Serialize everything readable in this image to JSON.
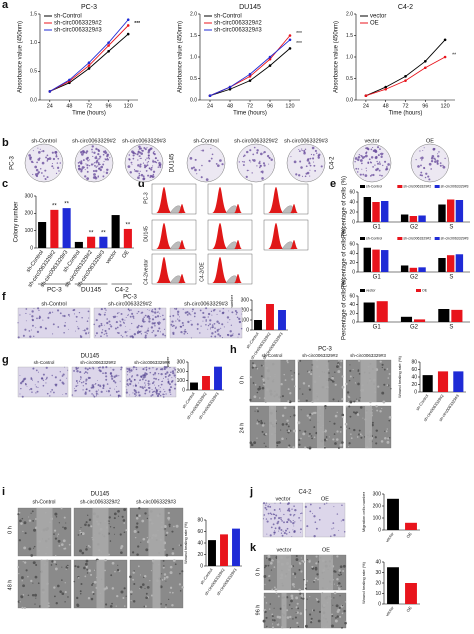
{
  "panels": [
    "a",
    "b",
    "c",
    "d",
    "e",
    "f",
    "g",
    "h",
    "i",
    "j",
    "k"
  ],
  "chart_data": [
    {
      "type": "line",
      "title": "PC-3",
      "x_label": "Time (hours)",
      "y_label": "Absorbance value (450nm)",
      "x": [
        24,
        48,
        72,
        96,
        120
      ],
      "xlim": [
        12,
        132
      ],
      "xticks": [
        24,
        48,
        72,
        96,
        120
      ],
      "ylim": [
        0,
        1.5
      ],
      "yticks": [
        {
          "value": 0,
          "label": "0.0"
        },
        {
          "value": 0.5,
          "label": "0.5"
        },
        {
          "value": 1,
          "label": "1.0"
        },
        {
          "value": 1.5,
          "label": "1.5"
        }
      ],
      "series": [
        {
          "name": "sh-Control",
          "color": "#000000",
          "values": [
            0.15,
            0.3,
            0.55,
            0.85,
            1.15
          ]
        },
        {
          "name": "sh-circ0063329#2",
          "color": "#e8141c",
          "values": [
            0.15,
            0.33,
            0.6,
            0.95,
            1.3
          ]
        },
        {
          "name": "sh-circ0063329#3",
          "color": "#1f2bd6",
          "values": [
            0.15,
            0.35,
            0.65,
            1.0,
            1.4
          ]
        }
      ],
      "annotations": [
        "***",
        "***"
      ]
    },
    {
      "type": "line",
      "title": "DU145",
      "x_label": "Time (hours)",
      "y_label": "Absorbance value (450nm)",
      "x": [
        24,
        48,
        72,
        96,
        120
      ],
      "xlim": [
        12,
        132
      ],
      "xticks": [
        24,
        48,
        72,
        96,
        120
      ],
      "ylim": [
        0,
        2
      ],
      "yticks": [
        {
          "value": 0,
          "label": "0.0"
        },
        {
          "value": 0.5,
          "label": "0.5"
        },
        {
          "value": 1,
          "label": "1.0"
        },
        {
          "value": 1.5,
          "label": "1.5"
        },
        {
          "value": 2,
          "label": "2.0"
        }
      ],
      "series": [
        {
          "name": "sh-Control",
          "color": "#000000",
          "values": [
            0.1,
            0.25,
            0.45,
            0.8,
            1.2
          ]
        },
        {
          "name": "sh-circ0063329#2",
          "color": "#e8141c",
          "values": [
            0.1,
            0.3,
            0.55,
            0.95,
            1.5
          ]
        },
        {
          "name": "sh-circ0063329#3",
          "color": "#1f2bd6",
          "values": [
            0.1,
            0.3,
            0.6,
            1.0,
            1.4
          ]
        }
      ],
      "annotations": [
        "***",
        "***"
      ]
    },
    {
      "type": "line",
      "title": "C4-2",
      "x_label": "Time (hours)",
      "y_label": "Absorbance value (450nm)",
      "x": [
        24,
        48,
        72,
        96,
        120
      ],
      "xlim": [
        12,
        132
      ],
      "xticks": [
        24,
        48,
        72,
        96,
        120
      ],
      "ylim": [
        0,
        2
      ],
      "yticks": [
        {
          "value": 0,
          "label": "0.0"
        },
        {
          "value": 0.5,
          "label": "0.5"
        },
        {
          "value": 1,
          "label": "1.0"
        },
        {
          "value": 1.5,
          "label": "1.5"
        },
        {
          "value": 2,
          "label": "2.0"
        }
      ],
      "series": [
        {
          "name": "vector",
          "color": "#000000",
          "values": [
            0.1,
            0.3,
            0.55,
            0.9,
            1.4
          ]
        },
        {
          "name": "OE",
          "color": "#e8141c",
          "values": [
            0.1,
            0.25,
            0.45,
            0.75,
            1.0
          ]
        }
      ],
      "annotations": [
        "**"
      ]
    },
    {
      "type": "bar",
      "y_label": "Colony number",
      "categories": [
        "sh-Control",
        "sh-circ0063329#2",
        "sh-circ0063329#3",
        "sh-Control",
        "sh-circ0063329#2",
        "sh-circ0063329#3",
        "vector",
        "OE"
      ],
      "values": [
        150,
        220,
        230,
        35,
        65,
        65,
        190,
        110
      ],
      "colors": [
        "#000000",
        "#e8141c",
        "#1f2bd6",
        "#000000",
        "#e8141c",
        "#1f2bd6",
        "#000000",
        "#e8141c"
      ],
      "ylim": [
        0,
        300
      ],
      "yticks": [
        0,
        100,
        200,
        300
      ],
      "significance": [
        null,
        "**",
        "**",
        null,
        "**",
        "**",
        null,
        "**"
      ],
      "group_labels": [
        "PC-3",
        "DU145",
        "C4-2"
      ]
    },
    {
      "type": "bar",
      "y_label": "Percentage of cells (%)",
      "categories": [
        "G1",
        "G2",
        "S"
      ],
      "ylim": [
        0,
        60
      ],
      "yticks": [
        0,
        20,
        40,
        60
      ],
      "series": [
        {
          "name": "sh-Control",
          "color": "#000000",
          "values": [
            50,
            15,
            35
          ]
        },
        {
          "name": "sh-circ0063329#2",
          "color": "#e8141c",
          "values": [
            40,
            12,
            45
          ]
        },
        {
          "name": "sh-circ0063329#3",
          "color": "#1f2bd6",
          "values": [
            42,
            13,
            44
          ]
        }
      ]
    },
    {
      "type": "bar",
      "y_label": "Percentage of cells (%)",
      "categories": [
        "G1",
        "G2",
        "S"
      ],
      "ylim": [
        0,
        60
      ],
      "yticks": [
        0,
        20,
        40,
        60
      ],
      "series": [
        {
          "name": "sh-Control",
          "color": "#000000",
          "values": [
            52,
            14,
            30
          ]
        },
        {
          "name": "sh-circ0063329#2",
          "color": "#e8141c",
          "values": [
            48,
            9,
            36
          ]
        },
        {
          "name": "sh-circ0063329#3",
          "color": "#1f2bd6",
          "values": [
            47,
            10,
            38
          ]
        }
      ]
    },
    {
      "type": "bar",
      "y_label": "Percentage of cells (%)",
      "categories": [
        "G1",
        "G2",
        "S"
      ],
      "ylim": [
        0,
        60
      ],
      "yticks": [
        0,
        20,
        40,
        60
      ],
      "series": [
        {
          "name": "vector",
          "color": "#000000",
          "values": [
            45,
            12,
            30
          ]
        },
        {
          "name": "OE",
          "color": "#e8141c",
          "values": [
            48,
            6,
            28
          ]
        }
      ]
    },
    {
      "type": "bar",
      "y_label": "Migration cells number",
      "categories": [
        "sh-Control",
        "sh-circ0063329#2",
        "sh-circ0063329#3"
      ],
      "values": [
        100,
        260,
        200
      ],
      "colors": [
        "#000000",
        "#e8141c",
        "#1f2bd6"
      ],
      "ylim": [
        0,
        300
      ],
      "yticks": [
        0,
        100,
        200,
        300
      ]
    },
    {
      "type": "bar",
      "y_label": "Invasion cells number",
      "categories": [
        "sh-Control",
        "sh-circ0063329#2",
        "sh-circ0063329#3"
      ],
      "values": [
        80,
        150,
        250
      ],
      "colors": [
        "#000000",
        "#e8141c",
        "#1f2bd6"
      ],
      "ylim": [
        0,
        300
      ],
      "yticks": [
        0,
        100,
        200,
        300
      ]
    },
    {
      "type": "bar",
      "y_label": "Wound healing rate (%)",
      "categories": [
        "sh-Control",
        "sh-circ0063329#2",
        "sh-circ0063329#3"
      ],
      "values": [
        45,
        55,
        55
      ],
      "colors": [
        "#000000",
        "#e8141c",
        "#1f2bd6"
      ],
      "ylim": [
        0,
        80
      ],
      "yticks": [
        0,
        20,
        40,
        60,
        80
      ]
    },
    {
      "type": "bar",
      "y_label": "Wound healing rate (%)",
      "categories": [
        "sh-Control",
        "sh-circ0063329#2",
        "sh-circ0063329#3"
      ],
      "values": [
        45,
        55,
        65
      ],
      "colors": [
        "#000000",
        "#e8141c",
        "#1f2bd6"
      ],
      "ylim": [
        0,
        80
      ],
      "yticks": [
        0,
        20,
        40,
        60,
        80
      ]
    },
    {
      "type": "bar",
      "y_label": "Migration cells number",
      "categories": [
        "vector",
        "OE"
      ],
      "values": [
        260,
        60
      ],
      "colors": [
        "#000000",
        "#e8141c"
      ],
      "ylim": [
        0,
        300
      ],
      "yticks": [
        0,
        100,
        200,
        300
      ]
    },
    {
      "type": "bar",
      "y_label": "Wound healing rate (%)",
      "categories": [
        "vector",
        "OE"
      ],
      "values": [
        35,
        20
      ],
      "colors": [
        "#000000",
        "#e8141c"
      ],
      "ylim": [
        0,
        40
      ],
      "yticks": [
        0,
        10,
        20,
        30,
        40
      ]
    }
  ],
  "images": {
    "b": {
      "groups": [
        {
          "label": "PC-3",
          "cols": [
            "sh-Control",
            "sh-circ0063329#2",
            "sh-circ0063329#3"
          ]
        },
        {
          "label": "DU145",
          "cols": [
            "sh-Control",
            "sh-circ0063329#2",
            "sh-circ0063329#3"
          ]
        },
        {
          "label": "C4-2",
          "cols": [
            "vector",
            "OE"
          ]
        }
      ]
    },
    "d": {
      "rows": [
        "PC-3",
        "DU145",
        "C4-2/vector",
        "C4-2/OE"
      ]
    },
    "f": {
      "title": "PC-3",
      "cols": [
        "sh-Control",
        "sh-circ0063329#2",
        "sh-circ0063329#3"
      ]
    },
    "g": {
      "title": "DU145",
      "cols": [
        "sh-Control",
        "sh-circ0063329#2",
        "sh-circ0063329#3"
      ]
    },
    "h": {
      "title": "PC-3",
      "cols": [
        "sh-Control",
        "sh-circ0063329#2",
        "sh-circ0063329#3"
      ],
      "rows": [
        "0 h",
        "24 h"
      ]
    },
    "i": {
      "title": "DU145",
      "cols": [
        "sh-Control",
        "sh-circ0063329#2",
        "sh-circ0063329#3"
      ],
      "rows": [
        "0 h",
        "48 h"
      ]
    },
    "j": {
      "title": "C4-2",
      "cols": [
        "vector",
        "OE"
      ]
    },
    "k": {
      "cols": [
        "vector",
        "OE"
      ],
      "rows": [
        "0 h",
        "96 h"
      ]
    }
  }
}
